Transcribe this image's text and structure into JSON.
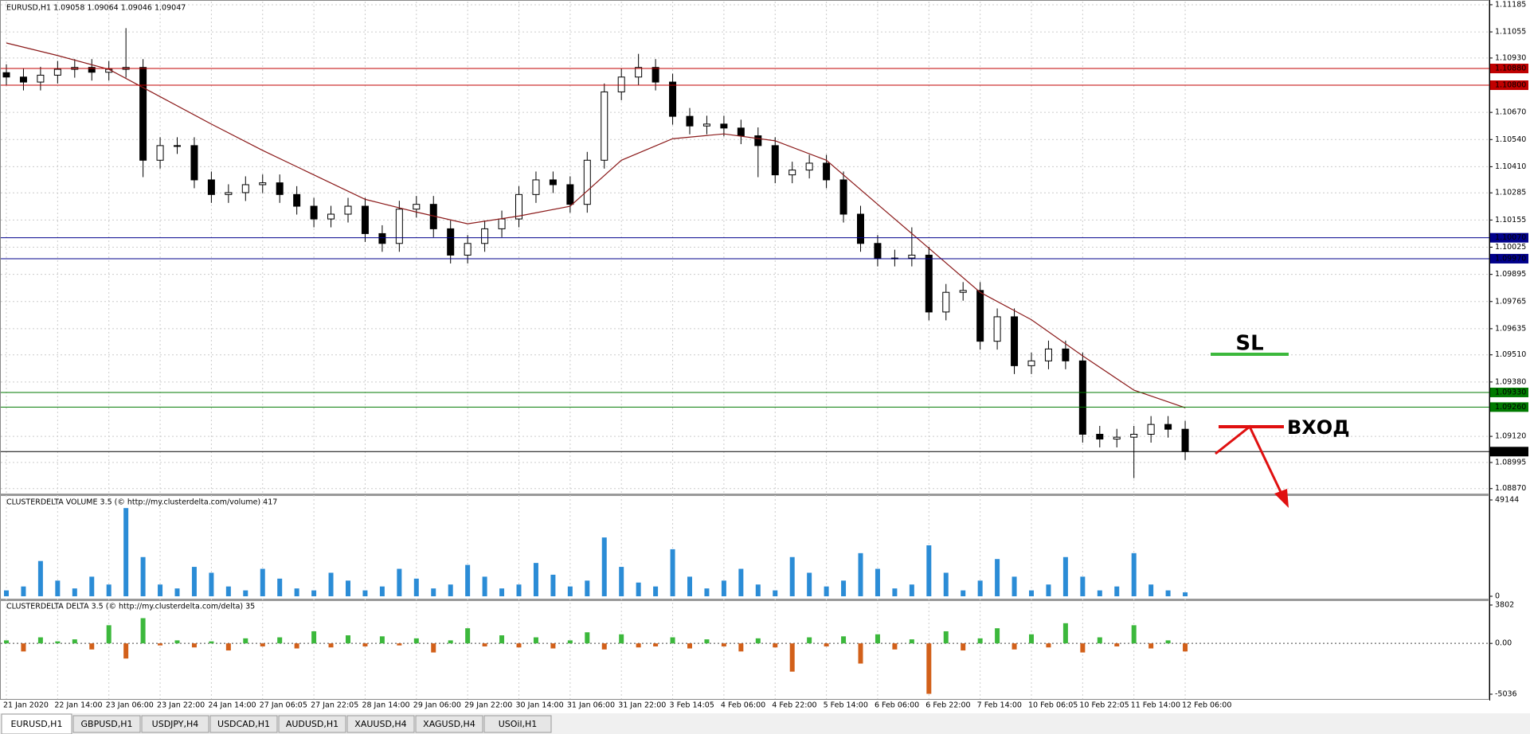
{
  "chart_data": [
    {
      "type": "candlestick",
      "title": "EURUSD,H1  1.09058 1.09064 1.09046 1.09047",
      "categories": [
        "21 Jan 2020",
        null,
        null,
        "22 Jan 14:00",
        null,
        null,
        "23 Jan 06:00",
        null,
        null,
        "23 Jan 22:00",
        null,
        null,
        "24 Jan 14:00",
        null,
        null,
        "27 Jan 06:05",
        null,
        null,
        "27 Jan 22:05",
        null,
        null,
        "28 Jan 14:00",
        null,
        null,
        "29 Jan 06:00",
        null,
        null,
        "29 Jan 22:00",
        null,
        null,
        "30 Jan 14:00",
        null,
        null,
        "31 Jan 06:00",
        null,
        null,
        "31 Jan 22:00",
        null,
        null,
        "3 Feb 14:05",
        null,
        null,
        "4 Feb 06:00",
        null,
        null,
        "4 Feb 22:00",
        null,
        null,
        "5 Feb 14:00",
        null,
        null,
        "6 Feb 06:00",
        null,
        null,
        "6 Feb 22:00",
        null,
        null,
        "7 Feb 14:00",
        null,
        null,
        "10 Feb 06:05",
        null,
        null,
        "10 Feb 22:05",
        null,
        null,
        "11 Feb 14:00",
        null,
        null,
        "12 Feb 06:00"
      ],
      "open": [
        1.1086,
        1.10839,
        1.10815,
        1.10848,
        1.10876,
        1.10885,
        1.10862,
        1.10876,
        1.10885,
        1.10441,
        1.10511,
        1.10511,
        1.10347,
        1.10277,
        1.10286,
        1.10324,
        1.10333,
        1.10277,
        1.10221,
        1.1016,
        1.10183,
        1.10221,
        1.1009,
        1.10043,
        1.10207,
        1.1023,
        1.10113,
        1.09987,
        1.10043,
        1.10113,
        1.1016,
        1.10277,
        1.10347,
        1.10324,
        1.1023,
        1.10441,
        1.10768,
        1.10839,
        1.10885,
        1.10815,
        1.10651,
        1.10605,
        1.10614,
        1.10595,
        1.10558,
        1.10511,
        1.10371,
        1.10394,
        1.10427,
        1.10347,
        1.10183,
        1.10043,
        1.09973,
        1.09973,
        1.09987,
        1.09715,
        1.09809,
        1.09818,
        1.09575,
        1.09692,
        1.09458,
        1.09481,
        1.09538,
        1.09481,
        1.0913,
        1.09107,
        1.09116,
        1.0913,
        1.09177,
        1.09154
      ],
      "high": [
        1.109,
        1.10879,
        1.10888,
        1.10916,
        1.10925,
        1.10925,
        1.10916,
        1.11073,
        1.10925,
        1.10551,
        1.10551,
        1.10551,
        1.10387,
        1.10326,
        1.10364,
        1.10373,
        1.10373,
        1.10317,
        1.10261,
        1.10223,
        1.10261,
        1.10261,
        1.1013,
        1.10247,
        1.1027,
        1.1027,
        1.10153,
        1.10083,
        1.10153,
        1.102,
        1.10317,
        1.10387,
        1.10387,
        1.10364,
        1.10481,
        1.10808,
        1.10879,
        1.1095,
        1.10925,
        1.10855,
        1.10691,
        1.10654,
        1.10654,
        1.10635,
        1.10598,
        1.10551,
        1.10434,
        1.10467,
        1.10467,
        1.10387,
        1.10223,
        1.10083,
        1.10013,
        1.1012,
        1.10027,
        1.09849,
        1.09858,
        1.09858,
        1.09732,
        1.09732,
        1.09521,
        1.09578,
        1.09578,
        1.09521,
        1.0917,
        1.09156,
        1.0917,
        1.09217,
        1.09217,
        1.09194
      ],
      "low": [
        1.10799,
        1.10775,
        1.10775,
        1.10808,
        1.10836,
        1.10822,
        1.10822,
        1.10836,
        1.1036,
        1.10401,
        1.10471,
        1.10307,
        1.10237,
        1.10237,
        1.10246,
        1.10284,
        1.10237,
        1.10181,
        1.1012,
        1.1012,
        1.10143,
        1.1005,
        1.10003,
        1.10003,
        1.10167,
        1.10073,
        1.09947,
        1.09947,
        1.10003,
        1.10073,
        1.1012,
        1.10237,
        1.10284,
        1.1019,
        1.1019,
        1.10401,
        1.10728,
        1.10799,
        1.10775,
        1.10611,
        1.10565,
        1.10565,
        1.10555,
        1.10518,
        1.1036,
        1.10331,
        1.10331,
        1.10354,
        1.10307,
        1.10143,
        1.10003,
        1.09933,
        1.09933,
        1.09933,
        1.09675,
        1.09675,
        1.09769,
        1.09535,
        1.09535,
        1.09418,
        1.09418,
        1.09441,
        1.09441,
        1.0909,
        1.09067,
        1.09067,
        1.0892,
        1.0909,
        1.09114,
        1.09007
      ],
      "close": [
        1.10839,
        1.10815,
        1.10848,
        1.10876,
        1.10885,
        1.10862,
        1.10876,
        1.10885,
        1.10441,
        1.10511,
        1.10511,
        1.10347,
        1.10277,
        1.10286,
        1.10324,
        1.10333,
        1.10277,
        1.10221,
        1.1016,
        1.10183,
        1.10221,
        1.1009,
        1.10043,
        1.10207,
        1.1023,
        1.10113,
        1.09987,
        1.10043,
        1.10113,
        1.1016,
        1.10277,
        1.10347,
        1.10324,
        1.1023,
        1.10441,
        1.10768,
        1.10839,
        1.10885,
        1.10815,
        1.10651,
        1.10605,
        1.10614,
        1.10595,
        1.10558,
        1.10511,
        1.10371,
        1.10394,
        1.10427,
        1.10347,
        1.10183,
        1.10043,
        1.09973,
        1.09973,
        1.09987,
        1.09715,
        1.09809,
        1.09818,
        1.09575,
        1.09692,
        1.09458,
        1.09481,
        1.09538,
        1.09481,
        1.0913,
        1.09107,
        1.09116,
        1.0913,
        1.09177,
        1.09154,
        1.09047
      ],
      "ma": {
        "color": "#8b1a1a",
        "x": [
          0,
          3,
          6,
          9,
          12,
          15,
          18,
          21,
          24,
          27,
          30,
          33,
          36,
          39,
          42,
          45,
          48,
          51,
          54,
          57,
          60,
          63,
          66,
          69
        ],
        "values": [
          1.11002,
          1.10942,
          1.10876,
          1.10745,
          1.10614,
          1.10488,
          1.10371,
          1.10254,
          1.10193,
          1.10137,
          1.10174,
          1.10221,
          1.10441,
          1.10544,
          1.10567,
          1.10534,
          1.10441,
          1.1023,
          1.1002,
          1.09809,
          1.09678,
          1.09505,
          1.09341,
          1.09257
        ]
      },
      "ylim": [
        1.0885,
        1.112
      ],
      "yticks": [
        {
          "value": 1.11185,
          "label": "1.11185"
        },
        {
          "value": 1.11055,
          "label": "1.11055"
        },
        {
          "value": 1.1093,
          "label": "1.10930"
        },
        {
          "value": 1.1067,
          "label": "1.10670"
        },
        {
          "value": 1.1054,
          "label": "1.10540"
        },
        {
          "value": 1.1041,
          "label": "1.10410"
        },
        {
          "value": 1.10285,
          "label": "1.10285"
        },
        {
          "value": 1.10155,
          "label": "1.10155"
        },
        {
          "value": 1.10025,
          "label": "1.10025"
        },
        {
          "value": 1.09895,
          "label": "1.09895"
        },
        {
          "value": 1.09765,
          "label": "1.09765"
        },
        {
          "value": 1.09635,
          "label": "1.09635"
        },
        {
          "value": 1.0951,
          "label": "1.09510"
        },
        {
          "value": 1.0938,
          "label": "1.09380"
        },
        {
          "value": 1.0912,
          "label": "1.09120"
        },
        {
          "value": 1.08995,
          "label": "1.08995"
        },
        {
          "value": 1.0887,
          "label": "1.08870"
        }
      ],
      "grid": true,
      "levels": [
        {
          "value": 1.1088,
          "label": "1.10880",
          "color": "#c00000"
        },
        {
          "value": 1.108,
          "label": "1.10800",
          "color": "#c00000"
        },
        {
          "value": 1.1007,
          "label": "1.10070",
          "color": "#00008b"
        },
        {
          "value": 1.0997,
          "label": "1.09970",
          "color": "#00008b"
        },
        {
          "value": 1.0933,
          "label": "1.09330",
          "color": "#007a00"
        },
        {
          "value": 1.0926,
          "label": "1.09260",
          "color": "#007a00"
        },
        {
          "value": 1.09047,
          "label": "1.09047",
          "color": "#000000"
        }
      ],
      "annotations": [
        {
          "text": "SL",
          "color": "#3cb83c"
        },
        {
          "text": "ВХОД",
          "color": "#e01010"
        }
      ]
    },
    {
      "type": "bar",
      "title": "CLUSTERDELTA VOLUME 3.5 (© http://my.clusterdelta.com/volume) 417",
      "color": "#2b8cd6",
      "values": [
        3000,
        5000,
        18000,
        8000,
        4000,
        10000,
        6000,
        45000,
        20000,
        6000,
        4000,
        15000,
        12000,
        5000,
        3000,
        14000,
        9000,
        4000,
        3000,
        12000,
        8000,
        3000,
        5000,
        14000,
        9000,
        4000,
        6000,
        16000,
        10000,
        4000,
        6000,
        17000,
        11000,
        5000,
        8000,
        30000,
        15000,
        7000,
        5000,
        24000,
        10000,
        4000,
        8000,
        14000,
        6000,
        3000,
        20000,
        12000,
        5000,
        8000,
        22000,
        14000,
        4000,
        6000,
        26000,
        12000,
        3000,
        8000,
        19000,
        10000,
        3000,
        6000,
        20000,
        10000,
        3000,
        5000,
        22000,
        6000,
        3000,
        2000
      ],
      "ylim": [
        0,
        49144
      ],
      "yticks": [
        0,
        49144
      ]
    },
    {
      "type": "bar",
      "title": "CLUSTERDELTA DELTA 3.5 (© http://my.clusterdelta.com/delta) 35",
      "color": "#3cb83c",
      "negative_color": "#d2601a",
      "values": [
        300,
        -800,
        600,
        200,
        400,
        -600,
        1800,
        -1500,
        2500,
        -200,
        300,
        -400,
        200,
        -700,
        500,
        -300,
        600,
        -500,
        1200,
        -400,
        800,
        -300,
        700,
        -200,
        500,
        -900,
        300,
        1500,
        -300,
        800,
        -400,
        600,
        -500,
        300,
        1100,
        -600,
        900,
        -400,
        -300,
        600,
        -500,
        400,
        -300,
        -800,
        500,
        -400,
        -2800,
        600,
        -300,
        700,
        -2000,
        900,
        -600,
        400,
        -5000,
        1200,
        -700,
        500,
        1500,
        -600,
        900,
        -400,
        2000,
        -900,
        600,
        -300,
        1800,
        -500,
        300,
        -800
      ],
      "ylim": [
        -5036,
        3802
      ],
      "yticks": [
        3802,
        {
          "value": 0,
          "label": "0.00"
        },
        -5036
      ]
    }
  ],
  "tabs": [
    "EURUSD,H1",
    "GBPUSD,H1",
    "USDJPY,H4",
    "USDCAD,H1",
    "AUDUSD,H1",
    "XAUUSD,H4",
    "XAGUSD,H4",
    "USOil,H1"
  ]
}
